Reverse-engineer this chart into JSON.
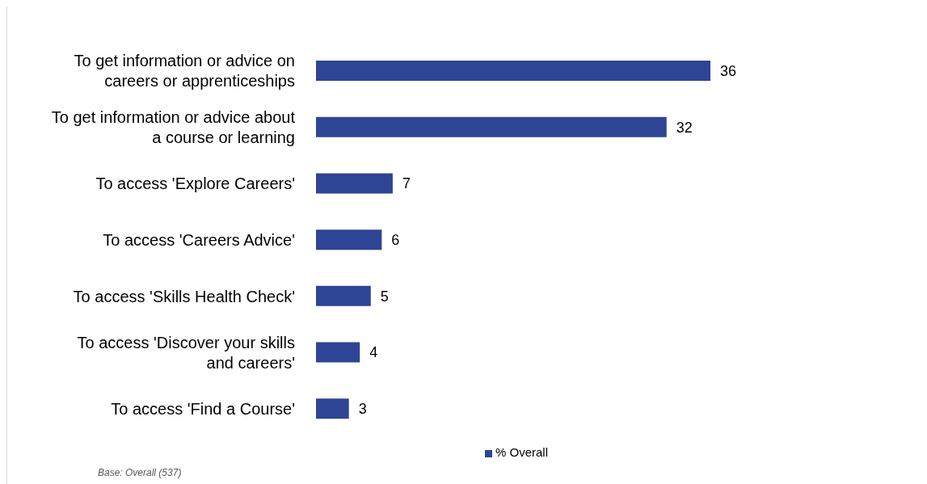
{
  "chart_data": {
    "type": "bar",
    "orientation": "horizontal",
    "categories": [
      "To get information or advice on careers or apprenticeships",
      "To get information or advice about a course or learning",
      "To access 'Explore Careers'",
      "To access 'Careers Advice'",
      "To access 'Skills Health Check'",
      "To access 'Discover your skills and careers'",
      "To access 'Find a Course'"
    ],
    "series": [
      {
        "name": "% Overall",
        "color": "#2e4494",
        "values": [
          36,
          32,
          7,
          6,
          5,
          4,
          3
        ]
      }
    ],
    "data_labels": true,
    "legend": "bottom",
    "grid": false,
    "annotations": [
      "Base: Overall (537)"
    ]
  }
}
